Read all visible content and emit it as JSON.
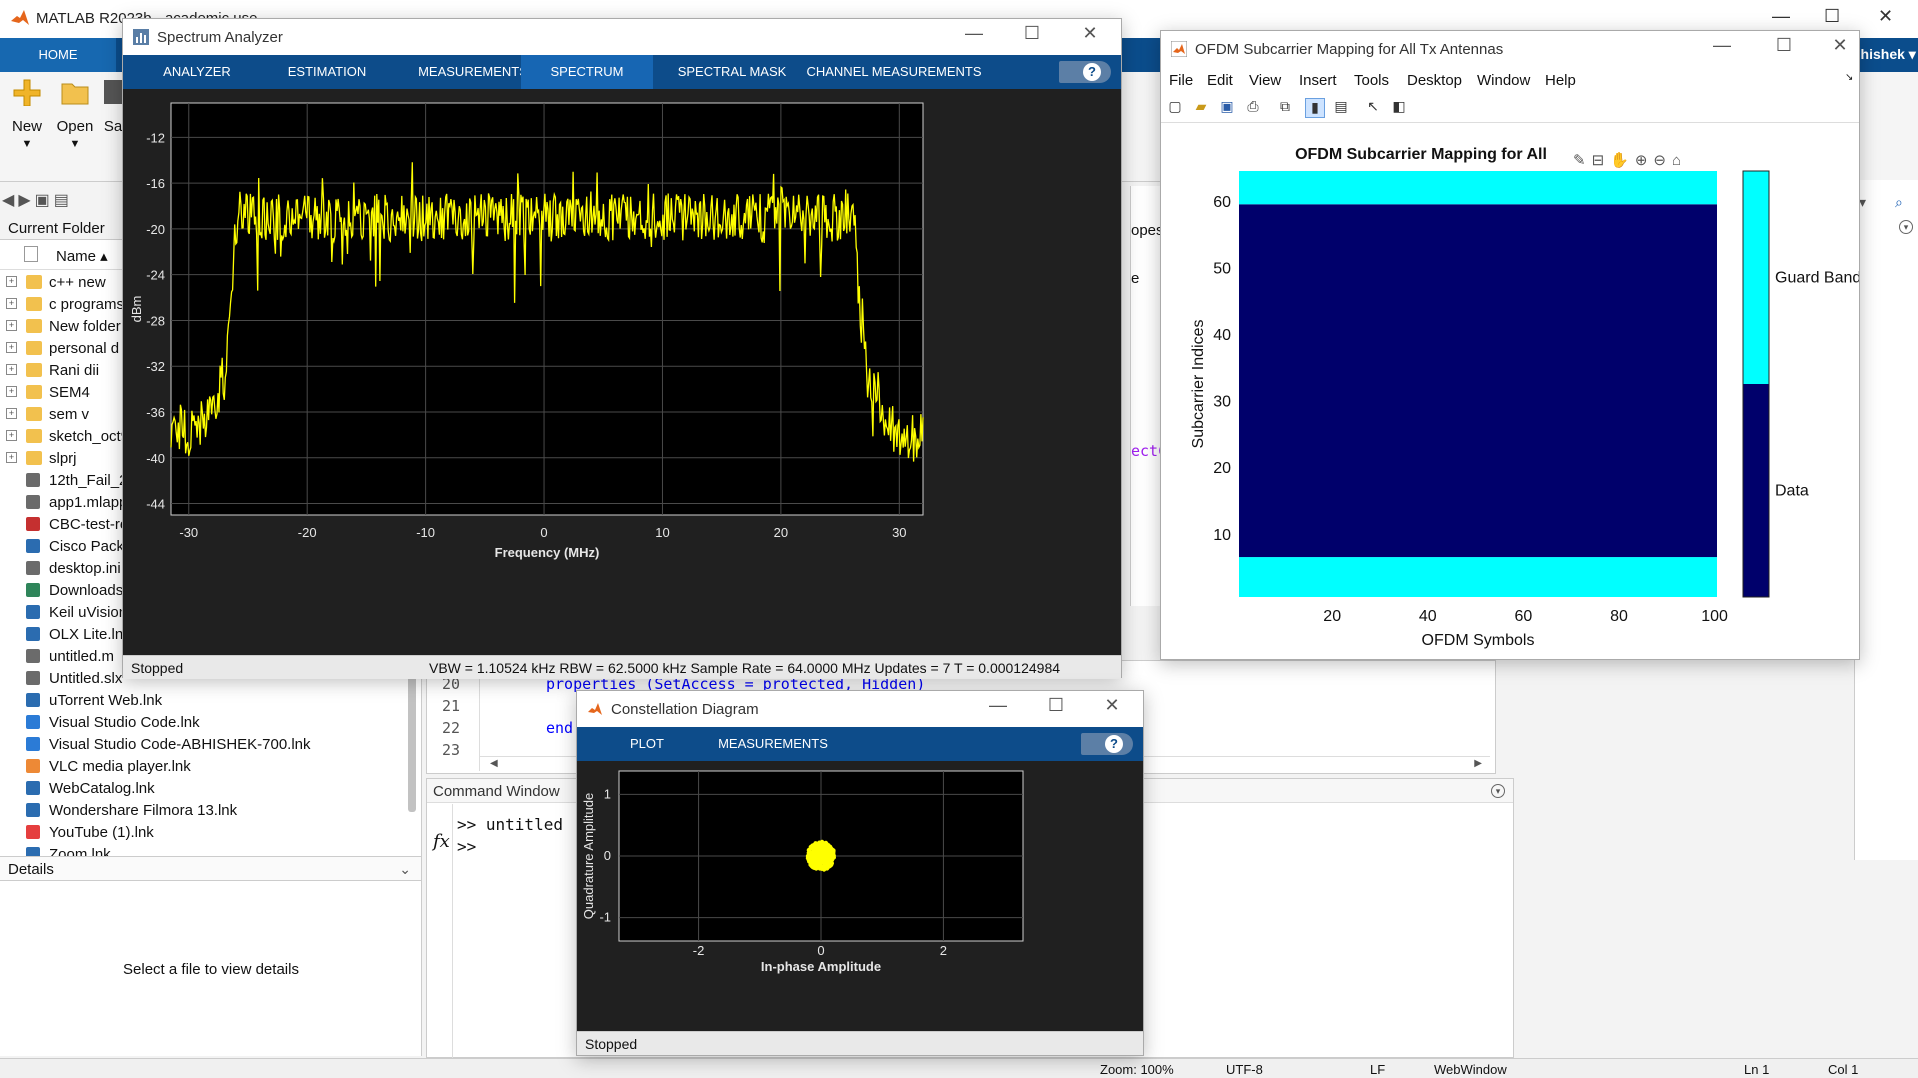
{
  "matlab": {
    "title": "MATLAB R2023b - academic use",
    "home_tab": "HOME",
    "user": "bhishek ▾",
    "ribbon_buttons": [
      "New",
      "Open",
      "Sa"
    ],
    "current_folder_header": "Current Folder",
    "name_column": "Name ▴",
    "files": [
      {
        "name": "c++ new",
        "type": "folder"
      },
      {
        "name": "c programs",
        "type": "folder"
      },
      {
        "name": "New folder",
        "type": "folder"
      },
      {
        "name": "personal d",
        "type": "folder"
      },
      {
        "name": "Rani dii",
        "type": "folder"
      },
      {
        "name": "SEM4",
        "type": "folder"
      },
      {
        "name": "sem v",
        "type": "folder"
      },
      {
        "name": "sketch_oct9",
        "type": "folder"
      },
      {
        "name": "slprj",
        "type": "folder"
      },
      {
        "name": "12th_Fail_2",
        "type": "file"
      },
      {
        "name": "app1.mlapp",
        "type": "file"
      },
      {
        "name": "CBC-test-re",
        "type": "pdf"
      },
      {
        "name": "Cisco Packe",
        "type": "app"
      },
      {
        "name": "desktop.ini",
        "type": "file"
      },
      {
        "name": "Downloads",
        "type": "download"
      },
      {
        "name": "Keil uVision",
        "type": "app"
      },
      {
        "name": "OLX Lite.lnk",
        "type": "app"
      },
      {
        "name": "untitled.m",
        "type": "file"
      },
      {
        "name": "Untitled.slx",
        "type": "file"
      },
      {
        "name": "uTorrent Web.lnk",
        "type": "app"
      },
      {
        "name": "Visual Studio Code.lnk",
        "type": "vscode"
      },
      {
        "name": "Visual Studio Code-ABHISHEK-700.lnk",
        "type": "vscode"
      },
      {
        "name": "VLC media player.lnk",
        "type": "vlc"
      },
      {
        "name": "WebCatalog.lnk",
        "type": "app"
      },
      {
        "name": "Wondershare Filmora 13.lnk",
        "type": "app"
      },
      {
        "name": "YouTube (1).lnk",
        "type": "youtube"
      },
      {
        "name": "Zoom.lnk",
        "type": "app"
      }
    ],
    "details_header": "Details",
    "details_message": "Select a file to view details",
    "editor": {
      "line_numbers": [
        "20",
        "21",
        "22",
        "23"
      ],
      "line20_code": "properties (SetAccess = protected, Hidden)",
      "line22_code": "end",
      "remnants": [
        "opes\\",
        "e",
        "ectC"
      ]
    },
    "command_window": {
      "title": "Command Window",
      "line1": ">> untitled",
      "line2": ">>",
      "fx": "fx"
    },
    "statusbar": [
      "Zoom: 100%",
      "UTF-8",
      "LF",
      "WebWindow",
      "Ln 1",
      "Col 1"
    ]
  },
  "spectrum_analyzer": {
    "title": "Spectrum Analyzer",
    "tabs": [
      "ANALYZER",
      "ESTIMATION",
      "MEASUREMENTS",
      "SPECTRUM",
      "SPECTRAL MASK",
      "CHANNEL MEASUREMENTS"
    ],
    "active_tab": "SPECTRUM",
    "help": "?",
    "status_left": "Stopped",
    "status_right": "VBW = 1.10524 kHz  RBW = 62.5000 kHz  Sample Rate = 64.0000 MHz  Updates = 7  T = 0.000124984"
  },
  "constellation": {
    "title": "Constellation Diagram",
    "tabs": [
      "PLOT",
      "MEASUREMENTS"
    ],
    "help": "?",
    "status": "Stopped"
  },
  "ofdm_window": {
    "title": "OFDM Subcarrier Mapping for All Tx Antennas",
    "menu": [
      "File",
      "Edit",
      "View",
      "Insert",
      "Tools",
      "Desktop",
      "Window",
      "Help"
    ]
  },
  "chart_data": [
    {
      "type": "line",
      "title": "",
      "xlabel": "Frequency (MHz)",
      "ylabel": "dBm",
      "xlim": [
        -31.5,
        32
      ],
      "ylim": [
        -45,
        -9
      ],
      "xticks": [
        -30,
        -20,
        -10,
        0,
        10,
        20,
        30
      ],
      "yticks": [
        -12,
        -16,
        -20,
        -24,
        -28,
        -32,
        -36,
        -40,
        -44
      ],
      "grid": true,
      "series": [
        {
          "color": "#ffff00",
          "x": [
            -31.5,
            -30,
            -28.5,
            -27,
            -26.5,
            -26.2,
            -25.8,
            -25,
            -20,
            -15,
            -10,
            -5,
            0,
            5,
            10,
            15,
            20,
            25,
            26,
            26.3,
            26.7,
            27.5,
            29,
            30.5,
            32
          ],
          "y": [
            -37,
            -38,
            -36.5,
            -33,
            -28,
            -22,
            -18,
            -19,
            -19,
            -19,
            -19,
            -19,
            -19,
            -19,
            -19,
            -19,
            -19,
            -19,
            -18.5,
            -20,
            -28,
            -34,
            -37,
            -38.5,
            -38
          ]
        }
      ]
    },
    {
      "type": "scatter",
      "title": "",
      "xlabel": "In-phase Amplitude",
      "ylabel": "Quadrature Amplitude",
      "xlim": [
        -3.3,
        3.3
      ],
      "ylim": [
        -1.38,
        1.38
      ],
      "xticks": [
        -2,
        0,
        2
      ],
      "yticks": [
        1,
        0,
        -1
      ],
      "grid": true,
      "series": [
        {
          "color": "#ffff00",
          "center": [
            0,
            0
          ],
          "spread": 0.2
        }
      ]
    },
    {
      "type": "heatmap",
      "title": "OFDM Subcarrier Mapping for All",
      "xlabel": "OFDM Symbols",
      "ylabel": "Subcarrier Indices",
      "xlim": [
        0.5,
        100.5
      ],
      "ylim": [
        0.5,
        64.5
      ],
      "xticks": [
        20,
        40,
        60,
        80,
        100
      ],
      "yticks": [
        10,
        20,
        30,
        40,
        50,
        60
      ],
      "bands": [
        {
          "from": 0.5,
          "to": 6.5,
          "label": "Guard Band",
          "color": "#00ffff"
        },
        {
          "from": 6.5,
          "to": 59.5,
          "label": "Data",
          "color": "#00006b"
        },
        {
          "from": 59.5,
          "to": 64.5,
          "label": "Guard Band",
          "color": "#00ffff"
        }
      ],
      "colorbar": [
        {
          "label": "Guard Band",
          "color": "#00ffff"
        },
        {
          "label": "Data",
          "color": "#00006b"
        }
      ]
    }
  ]
}
